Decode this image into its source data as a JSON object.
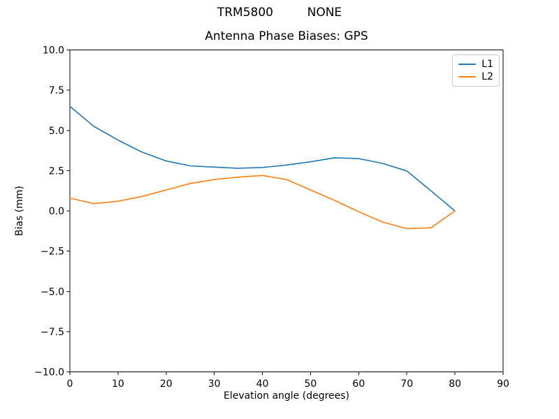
{
  "chart_data": {
    "type": "line",
    "suptitle": "TRM5800         NONE",
    "title": "Antenna Phase Biases: GPS",
    "xlabel": "Elevation angle (degrees)",
    "ylabel": "Bias (mm)",
    "xlim": [
      0,
      90
    ],
    "ylim": [
      -10,
      10
    ],
    "grid": false,
    "legend_position": "upper right",
    "axis_color": "#000000",
    "background": "#ffffff",
    "xticks": {
      "values": [
        0,
        10,
        20,
        30,
        40,
        50,
        60,
        70,
        80,
        90
      ],
      "labels": [
        "0",
        "10",
        "20",
        "30",
        "40",
        "50",
        "60",
        "70",
        "80",
        "90"
      ]
    },
    "yticks": {
      "values": [
        10,
        7.5,
        5,
        2.5,
        0,
        -2.5,
        -5,
        -7.5,
        -10
      ],
      "labels": [
        "10.0",
        "7.5",
        "5.0",
        "2.5",
        "0.0",
        "−2.5",
        "−5.0",
        "−7.5",
        "−10.0"
      ]
    },
    "x": [
      0,
      5,
      10,
      15,
      20,
      25,
      30,
      35,
      40,
      45,
      50,
      55,
      60,
      65,
      70,
      75,
      80
    ],
    "series": [
      {
        "name": "L1",
        "color": "#1f77b4",
        "values": [
          6.5,
          5.25,
          4.4,
          3.65,
          3.1,
          2.8,
          2.72,
          2.65,
          2.7,
          2.85,
          3.05,
          3.3,
          3.25,
          2.95,
          2.48,
          1.25,
          0.0
        ]
      },
      {
        "name": "L2",
        "color": "#ff7f0e",
        "values": [
          0.8,
          0.45,
          0.6,
          0.9,
          1.3,
          1.7,
          1.95,
          2.1,
          2.2,
          1.95,
          1.3,
          0.65,
          -0.05,
          -0.7,
          -1.1,
          -1.05,
          0.0
        ]
      }
    ]
  }
}
